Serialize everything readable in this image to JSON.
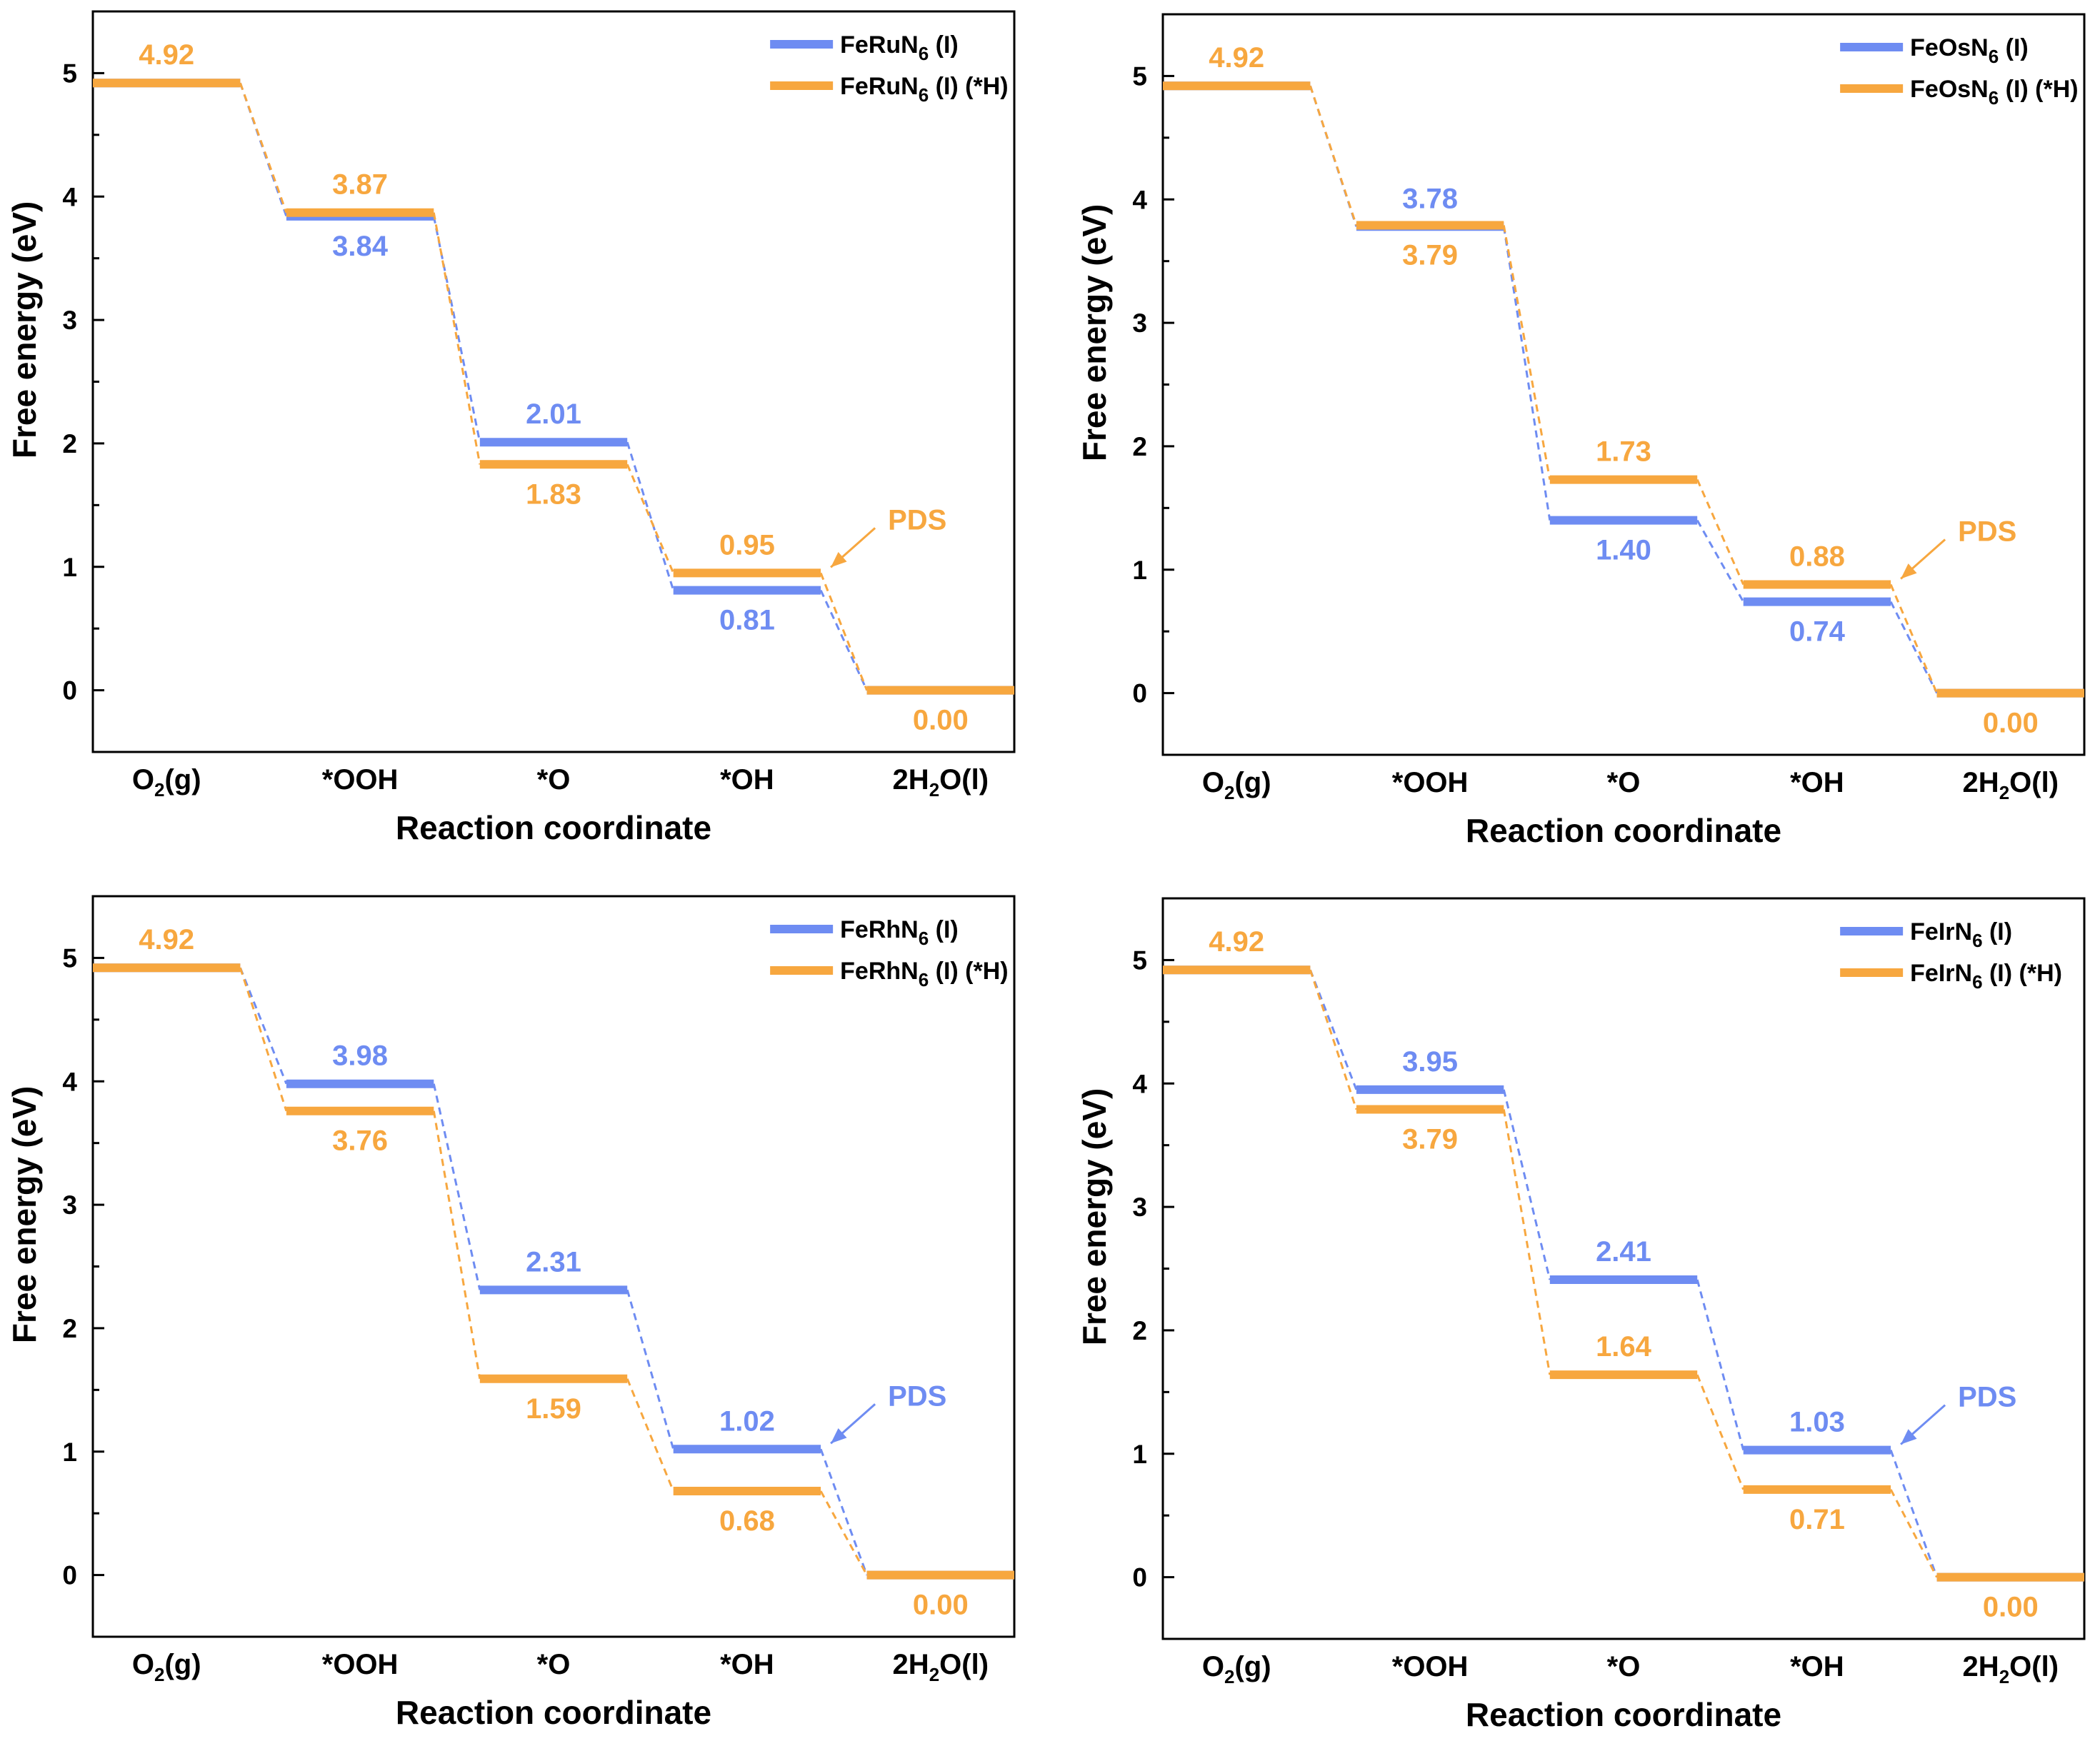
{
  "colors": {
    "series1": "#6e8cf2",
    "series2": "#f7a73f",
    "axis": "#000000"
  },
  "chart_data": [
    {
      "type": "line",
      "title": "",
      "xlabel": "Reaction coordinate",
      "ylabel": "Free energy (eV)",
      "ylim": [
        -0.5,
        5.5
      ],
      "yticks": [
        "0",
        "1",
        "2",
        "3",
        "4",
        "5"
      ],
      "categories": [
        {
          "main": "O",
          "sub": "2",
          "post": "(g)"
        },
        {
          "main": "*OOH",
          "sub": "",
          "post": ""
        },
        {
          "main": "*O",
          "sub": "",
          "post": ""
        },
        {
          "main": "*OH",
          "sub": "",
          "post": ""
        },
        {
          "main": "2H",
          "sub": "2",
          "post": "O(l)"
        }
      ],
      "series": [
        {
          "name": {
            "main": "FeRuN",
            "sub": "6",
            "post": " (I)"
          },
          "color_key": "series1",
          "values": [
            4.92,
            3.84,
            2.01,
            0.81,
            0.0
          ],
          "labels": [
            "",
            "3.84",
            "2.01",
            "0.81",
            ""
          ],
          "label_pos": [
            "",
            "below",
            "above",
            "below",
            ""
          ]
        },
        {
          "name": {
            "main": "FeRuN",
            "sub": "6",
            "post": " (I) (*H)"
          },
          "color_key": "series2",
          "values": [
            4.92,
            3.87,
            1.83,
            0.95,
            0.0
          ],
          "labels": [
            "4.92",
            "3.87",
            "1.83",
            "0.95",
            "0.00"
          ],
          "label_pos": [
            "above",
            "above",
            "below",
            "above",
            "below"
          ]
        }
      ],
      "annotation": {
        "text": "PDS",
        "series_index": 1
      }
    },
    {
      "type": "line",
      "title": "",
      "xlabel": "Reaction coordinate",
      "ylabel": "Free energy (eV)",
      "ylim": [
        -0.5,
        5.5
      ],
      "yticks": [
        "0",
        "1",
        "2",
        "3",
        "4",
        "5"
      ],
      "categories": [
        {
          "main": "O",
          "sub": "2",
          "post": "(g)"
        },
        {
          "main": "*OOH",
          "sub": "",
          "post": ""
        },
        {
          "main": "*O",
          "sub": "",
          "post": ""
        },
        {
          "main": "*OH",
          "sub": "",
          "post": ""
        },
        {
          "main": "2H",
          "sub": "2",
          "post": "O(l)"
        }
      ],
      "series": [
        {
          "name": {
            "main": "FeOsN",
            "sub": "6",
            "post": " (I)"
          },
          "color_key": "series1",
          "values": [
            4.92,
            3.78,
            1.4,
            0.74,
            0.0
          ],
          "labels": [
            "",
            "3.78",
            "1.40",
            "0.74",
            ""
          ],
          "label_pos": [
            "",
            "above",
            "below",
            "below",
            ""
          ]
        },
        {
          "name": {
            "main": "FeOsN",
            "sub": "6",
            "post": " (I) (*H)"
          },
          "color_key": "series2",
          "values": [
            4.92,
            3.79,
            1.73,
            0.88,
            0.0
          ],
          "labels": [
            "4.92",
            "3.79",
            "1.73",
            "0.88",
            "0.00"
          ],
          "label_pos": [
            "above",
            "below",
            "above",
            "above",
            "below"
          ]
        }
      ],
      "annotation": {
        "text": "PDS",
        "series_index": 1
      }
    },
    {
      "type": "line",
      "title": "",
      "xlabel": "Reaction coordinate",
      "ylabel": "Free energy (eV)",
      "ylim": [
        -0.5,
        5.5
      ],
      "yticks": [
        "0",
        "1",
        "2",
        "3",
        "4",
        "5"
      ],
      "categories": [
        {
          "main": "O",
          "sub": "2",
          "post": "(g)"
        },
        {
          "main": "*OOH",
          "sub": "",
          "post": ""
        },
        {
          "main": "*O",
          "sub": "",
          "post": ""
        },
        {
          "main": "*OH",
          "sub": "",
          "post": ""
        },
        {
          "main": "2H",
          "sub": "2",
          "post": "O(l)"
        }
      ],
      "series": [
        {
          "name": {
            "main": "FeRhN",
            "sub": "6",
            "post": " (I)"
          },
          "color_key": "series1",
          "values": [
            4.92,
            3.98,
            2.31,
            1.02,
            0.0
          ],
          "labels": [
            "",
            "3.98",
            "2.31",
            "1.02",
            ""
          ],
          "label_pos": [
            "",
            "above",
            "above",
            "above",
            ""
          ]
        },
        {
          "name": {
            "main": "FeRhN",
            "sub": "6",
            "post": " (I) (*H)"
          },
          "color_key": "series2",
          "values": [
            4.92,
            3.76,
            1.59,
            0.68,
            0.0
          ],
          "labels": [
            "4.92",
            "3.76",
            "1.59",
            "0.68",
            "0.00"
          ],
          "label_pos": [
            "above",
            "below",
            "below",
            "below",
            "below"
          ]
        }
      ],
      "annotation": {
        "text": "PDS",
        "series_index": 0
      }
    },
    {
      "type": "line",
      "title": "",
      "xlabel": "Reaction coordinate",
      "ylabel": "Free energy (eV)",
      "ylim": [
        -0.5,
        5.5
      ],
      "yticks": [
        "0",
        "1",
        "2",
        "3",
        "4",
        "5"
      ],
      "categories": [
        {
          "main": "O",
          "sub": "2",
          "post": "(g)"
        },
        {
          "main": "*OOH",
          "sub": "",
          "post": ""
        },
        {
          "main": "*O",
          "sub": "",
          "post": ""
        },
        {
          "main": "*OH",
          "sub": "",
          "post": ""
        },
        {
          "main": "2H",
          "sub": "2",
          "post": "O(l)"
        }
      ],
      "series": [
        {
          "name": {
            "main": "FeIrN",
            "sub": "6",
            "post": " (I)"
          },
          "color_key": "series1",
          "values": [
            4.92,
            3.95,
            2.41,
            1.03,
            0.0
          ],
          "labels": [
            "",
            "3.95",
            "2.41",
            "1.03",
            ""
          ],
          "label_pos": [
            "",
            "above",
            "above",
            "above",
            ""
          ]
        },
        {
          "name": {
            "main": "FeIrN",
            "sub": "6",
            "post": " (I) (*H)"
          },
          "color_key": "series2",
          "values": [
            4.92,
            3.79,
            1.64,
            0.71,
            0.0
          ],
          "labels": [
            "4.92",
            "3.79",
            "1.64",
            "0.71",
            "0.00"
          ],
          "label_pos": [
            "above",
            "below",
            "above",
            "below",
            "below"
          ]
        }
      ],
      "annotation": {
        "text": "PDS",
        "series_index": 0
      }
    }
  ]
}
